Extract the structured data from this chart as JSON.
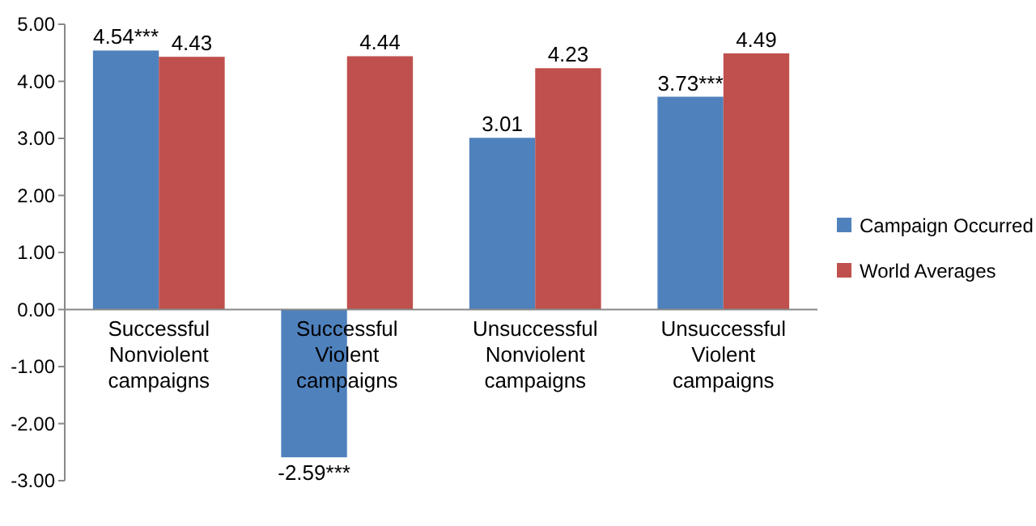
{
  "chart_data": {
    "type": "bar",
    "categories": [
      "Successful\nNonviolent\ncampaigns",
      "Successful\nViolent\ncampaigns",
      "Unsuccessful\nNonviolent\ncampaigns",
      "Unsuccessful\nViolent\ncampaigns"
    ],
    "series": [
      {
        "name": "Campaign Occurred",
        "color": "#4f81bd",
        "values": [
          4.54,
          -2.59,
          3.01,
          3.73
        ],
        "value_labels": [
          "4.54***",
          "-2.59***",
          "3.01",
          "3.73***"
        ]
      },
      {
        "name": "World Averages",
        "color": "#c0504d",
        "values": [
          4.43,
          4.44,
          4.23,
          4.49
        ],
        "value_labels": [
          "4.43",
          "4.44",
          "4.23",
          "4.49"
        ]
      }
    ],
    "ylim": [
      -3,
      5
    ],
    "yticks": [
      {
        "value": -3,
        "label": "-3.00"
      },
      {
        "value": -2,
        "label": "-2.00"
      },
      {
        "value": -1,
        "label": "-1.00"
      },
      {
        "value": 0,
        "label": "0.00"
      },
      {
        "value": 1,
        "label": "1.00"
      },
      {
        "value": 2,
        "label": "2.00"
      },
      {
        "value": 3,
        "label": "3.00"
      },
      {
        "value": 4,
        "label": "4.00"
      },
      {
        "value": 5,
        "label": "5.00"
      }
    ],
    "legend": "right"
  }
}
